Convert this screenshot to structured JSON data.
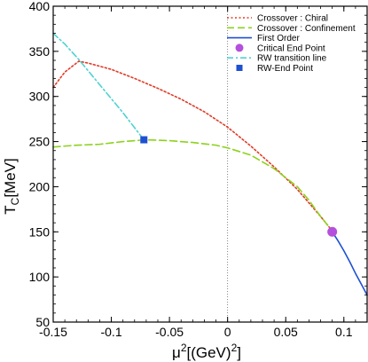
{
  "chart_data": {
    "type": "line",
    "xlabel": {
      "base": "μ",
      "sup1": "2",
      "mid": "[(GeV)",
      "sup2": "2",
      "end": "]"
    },
    "ylabel": {
      "base": "T",
      "sub": "C",
      "rest": "[MeV]"
    },
    "xlim": [
      -0.15,
      0.12
    ],
    "ylim": [
      50,
      400
    ],
    "xticks": [
      -0.15,
      -0.1,
      -0.05,
      0,
      0.05,
      0.1
    ],
    "xtick_labels": [
      "-0.15",
      "-0.1",
      "-0.05",
      "0",
      "0.05",
      "0.1"
    ],
    "yticks": [
      50,
      100,
      150,
      200,
      250,
      300,
      350,
      400
    ],
    "ytick_labels": [
      "50",
      "100",
      "150",
      "200",
      "250",
      "300",
      "350",
      "400"
    ],
    "vline_x": 0,
    "legend_position": "top-right",
    "series": [
      {
        "name": "Crossover : Chiral",
        "color": "#e03c28",
        "style": "dotted",
        "x": [
          -0.15,
          -0.14,
          -0.128,
          -0.12,
          -0.1,
          -0.08,
          -0.06,
          -0.04,
          -0.02,
          0,
          0.02,
          0.04,
          0.06,
          0.08,
          0.09
        ],
        "y": [
          310,
          327,
          339,
          337,
          330,
          320,
          309,
          297,
          283,
          266,
          245,
          222,
          197,
          167,
          151
        ]
      },
      {
        "name": "Crossover : Confinement",
        "color": "#8cd21e",
        "style": "dashed",
        "x": [
          -0.15,
          -0.13,
          -0.11,
          -0.09,
          -0.07,
          -0.05,
          -0.03,
          -0.01,
          0,
          0.02,
          0.04,
          0.06,
          0.07,
          0.08,
          0.09
        ],
        "y": [
          244,
          246,
          247,
          250,
          252,
          251,
          249,
          246,
          243,
          235,
          220,
          200,
          185,
          167,
          151
        ]
      },
      {
        "name": "First Order",
        "color": "#1e50d2",
        "style": "solid",
        "x": [
          0.09,
          0.095,
          0.1,
          0.105,
          0.11,
          0.115,
          0.12
        ],
        "y": [
          150,
          140,
          129,
          117,
          104,
          92,
          80
        ]
      },
      {
        "name": "RW transition line",
        "color": "#50d2d2",
        "style": "dashdot",
        "x": [
          -0.15,
          -0.14,
          -0.128,
          -0.11,
          -0.09,
          -0.072
        ],
        "y": [
          370,
          358,
          341,
          313,
          282,
          252
        ]
      }
    ],
    "points": [
      {
        "name": "Critical End Point",
        "x": 0.09,
        "y": 150,
        "color": "#b450dc",
        "marker": "circle"
      },
      {
        "name": "RW-End Point",
        "x": -0.072,
        "y": 252,
        "color": "#1e50d2",
        "marker": "square"
      }
    ]
  }
}
